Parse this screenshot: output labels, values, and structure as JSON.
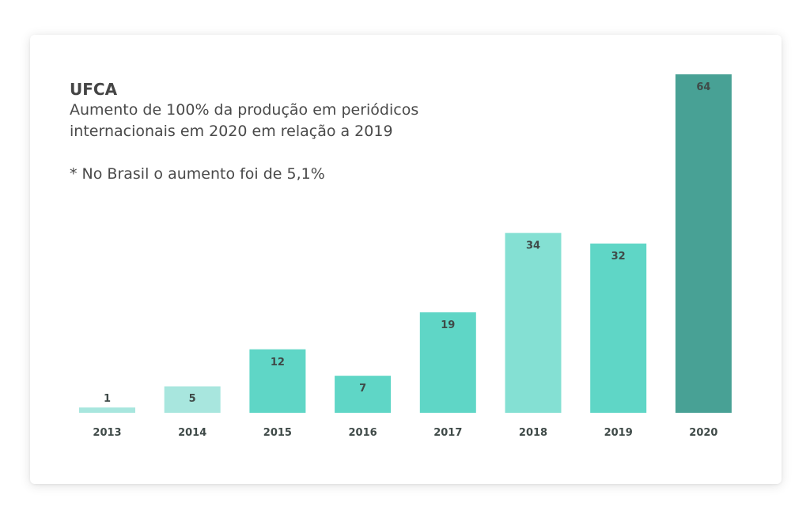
{
  "chart_data": {
    "type": "bar",
    "title": "UFCA",
    "subtitle": "Aumento de 100% da produção em periódicos internacionais em 2020 em relação a 2019",
    "subtitle_lines": [
      "Aumento de 100% da produção em periódicos",
      "internacionais em 2020 em relação a 2019"
    ],
    "annotation": "* No Brasil o aumento foi de 5,1%",
    "categories": [
      "2013",
      "2014",
      "2015",
      "2016",
      "2017",
      "2018",
      "2019",
      "2020"
    ],
    "values": [
      1,
      5,
      12,
      7,
      19,
      34,
      32,
      64
    ],
    "data_labels": [
      "1",
      "5",
      "12",
      "7",
      "19",
      "34",
      "32",
      "64"
    ],
    "colors": [
      "#a8e6de",
      "#a8e6de",
      "#5fd6c6",
      "#5fd6c6",
      "#5fd6c6",
      "#84e0d3",
      "#5fd6c6",
      "#48a195"
    ],
    "xlabel": "",
    "ylabel": "",
    "ylim": [
      0,
      64
    ],
    "grid": false,
    "legend": "none"
  }
}
